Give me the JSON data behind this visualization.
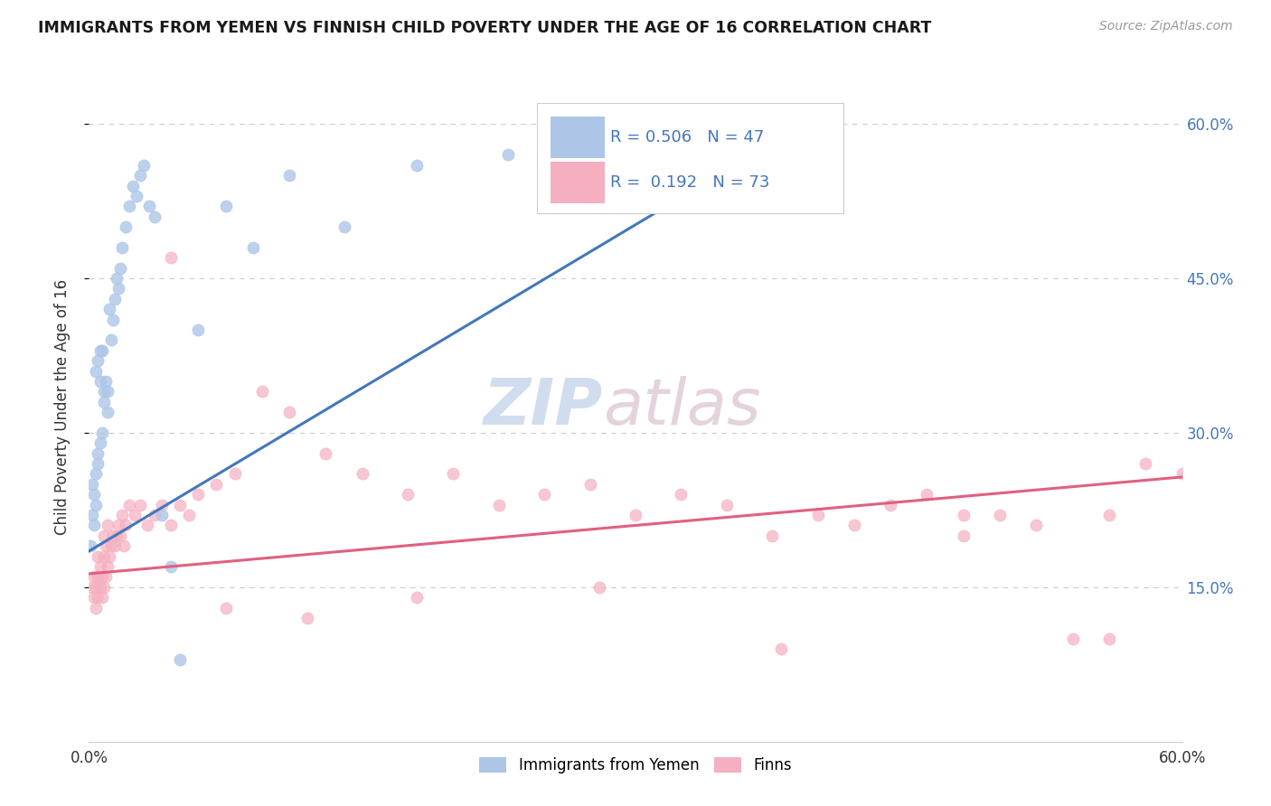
{
  "title": "IMMIGRANTS FROM YEMEN VS FINNISH CHILD POVERTY UNDER THE AGE OF 16 CORRELATION CHART",
  "source": "Source: ZipAtlas.com",
  "ylabel": "Child Poverty Under the Age of 16",
  "legend_label1": "Immigrants from Yemen",
  "legend_label2": "Finns",
  "R1": 0.506,
  "N1": 47,
  "R2": 0.192,
  "N2": 73,
  "color_blue": "#adc6e8",
  "color_pink": "#f5afc0",
  "line_blue": "#4477bb",
  "line_pink": "#e06080",
  "text_blue": "#4477bb",
  "text_dark": "#333333",
  "watermark_color": "#dce8f2",
  "grid_color": "#cccccc",
  "xlim": [
    0.0,
    0.6
  ],
  "ylim": [
    0.0,
    0.65
  ],
  "ytick_positions": [
    0.15,
    0.3,
    0.45,
    0.6
  ],
  "ytick_labels": [
    "15.0%",
    "30.0%",
    "45.0%",
    "60.0%"
  ],
  "blue_x": [
    0.001,
    0.002,
    0.002,
    0.003,
    0.003,
    0.004,
    0.004,
    0.004,
    0.005,
    0.005,
    0.005,
    0.006,
    0.006,
    0.006,
    0.007,
    0.007,
    0.008,
    0.008,
    0.009,
    0.01,
    0.01,
    0.011,
    0.012,
    0.013,
    0.014,
    0.015,
    0.016,
    0.017,
    0.018,
    0.02,
    0.022,
    0.024,
    0.026,
    0.028,
    0.03,
    0.033,
    0.036,
    0.04,
    0.045,
    0.05,
    0.06,
    0.075,
    0.09,
    0.11,
    0.14,
    0.18,
    0.23
  ],
  "blue_y": [
    0.19,
    0.22,
    0.25,
    0.21,
    0.24,
    0.23,
    0.26,
    0.36,
    0.27,
    0.28,
    0.37,
    0.29,
    0.35,
    0.38,
    0.3,
    0.38,
    0.33,
    0.34,
    0.35,
    0.32,
    0.34,
    0.42,
    0.39,
    0.41,
    0.43,
    0.45,
    0.44,
    0.46,
    0.48,
    0.5,
    0.52,
    0.54,
    0.53,
    0.55,
    0.56,
    0.52,
    0.51,
    0.22,
    0.17,
    0.08,
    0.4,
    0.52,
    0.48,
    0.55,
    0.5,
    0.56,
    0.57
  ],
  "pink_x": [
    0.002,
    0.003,
    0.003,
    0.004,
    0.004,
    0.005,
    0.005,
    0.005,
    0.006,
    0.006,
    0.007,
    0.007,
    0.008,
    0.008,
    0.008,
    0.009,
    0.009,
    0.01,
    0.01,
    0.011,
    0.012,
    0.013,
    0.014,
    0.015,
    0.016,
    0.017,
    0.018,
    0.019,
    0.02,
    0.022,
    0.025,
    0.028,
    0.032,
    0.036,
    0.04,
    0.045,
    0.05,
    0.055,
    0.06,
    0.07,
    0.08,
    0.095,
    0.11,
    0.13,
    0.15,
    0.175,
    0.2,
    0.225,
    0.25,
    0.275,
    0.3,
    0.325,
    0.35,
    0.375,
    0.4,
    0.42,
    0.44,
    0.46,
    0.48,
    0.5,
    0.52,
    0.54,
    0.56,
    0.58,
    0.6,
    0.56,
    0.48,
    0.38,
    0.28,
    0.18,
    0.12,
    0.075,
    0.045
  ],
  "pink_y": [
    0.15,
    0.14,
    0.16,
    0.13,
    0.15,
    0.14,
    0.16,
    0.18,
    0.15,
    0.17,
    0.14,
    0.16,
    0.15,
    0.18,
    0.2,
    0.16,
    0.19,
    0.17,
    0.21,
    0.18,
    0.19,
    0.2,
    0.19,
    0.2,
    0.21,
    0.2,
    0.22,
    0.19,
    0.21,
    0.23,
    0.22,
    0.23,
    0.21,
    0.22,
    0.23,
    0.21,
    0.23,
    0.22,
    0.24,
    0.25,
    0.26,
    0.34,
    0.32,
    0.28,
    0.26,
    0.24,
    0.26,
    0.23,
    0.24,
    0.25,
    0.22,
    0.24,
    0.23,
    0.2,
    0.22,
    0.21,
    0.23,
    0.24,
    0.2,
    0.22,
    0.21,
    0.1,
    0.1,
    0.27,
    0.26,
    0.22,
    0.22,
    0.09,
    0.15,
    0.14,
    0.12,
    0.13,
    0.47
  ],
  "blue_line_x": [
    0.0,
    0.35
  ],
  "blue_line_y": [
    0.185,
    0.555
  ],
  "pink_line_x": [
    0.0,
    0.6
  ],
  "pink_line_y": [
    0.163,
    0.257
  ]
}
